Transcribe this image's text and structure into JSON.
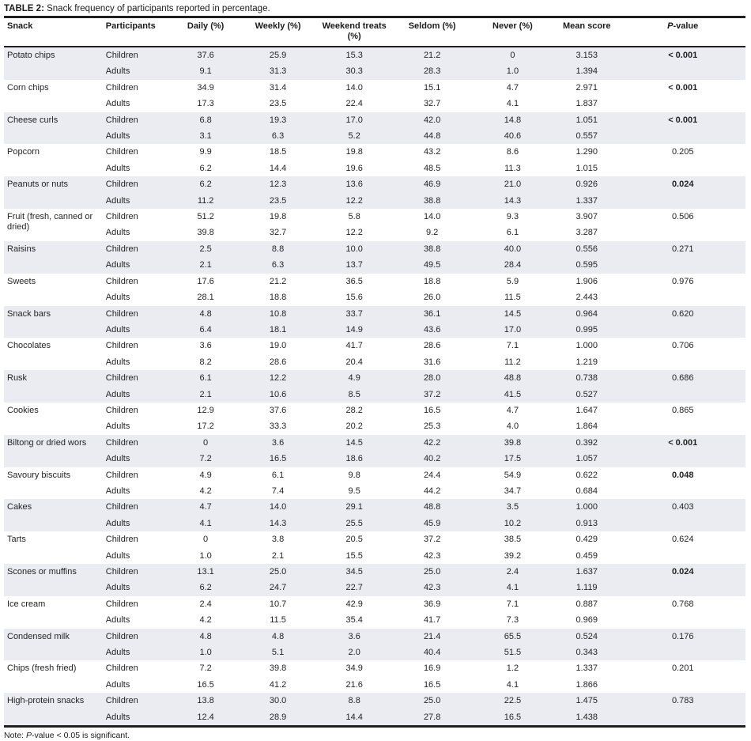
{
  "table": {
    "title_label": "TABLE 2:",
    "title_text": " Snack frequency of participants reported in percentage.",
    "headers": {
      "snack": "Snack",
      "participants": "Participants",
      "daily": "Daily (%)",
      "weekly": "Weekly (%)",
      "weekend": "Weekend treats (%)",
      "seldom": "Seldom (%)",
      "never": "Never (%)",
      "mean": "Mean score",
      "p_italic": "P",
      "p_rest": "-value"
    },
    "note": {
      "prefix": "Note: ",
      "p_italic": "P",
      "suffix": "-value < 0.05 is significant."
    },
    "colors": {
      "row_shade": "#ebecf1",
      "rule": "#231f20",
      "text": "#222222"
    },
    "groups": [
      {
        "snack": "Potato chips",
        "p_value": "< 0.001",
        "p_bold": true,
        "rows": [
          {
            "participant": "Children",
            "daily": "37.6",
            "weekly": "25.9",
            "weekend": "15.3",
            "seldom": "21.2",
            "never": "0",
            "mean": "3.153"
          },
          {
            "participant": "Adults",
            "daily": "9.1",
            "weekly": "31.3",
            "weekend": "30.3",
            "seldom": "28.3",
            "never": "1.0",
            "mean": "1.394"
          }
        ]
      },
      {
        "snack": "Corn chips",
        "p_value": "< 0.001",
        "p_bold": true,
        "rows": [
          {
            "participant": "Children",
            "daily": "34.9",
            "weekly": "31.4",
            "weekend": "14.0",
            "seldom": "15.1",
            "never": "4.7",
            "mean": "2.971"
          },
          {
            "participant": "Adults",
            "daily": "17.3",
            "weekly": "23.5",
            "weekend": "22.4",
            "seldom": "32.7",
            "never": "4.1",
            "mean": "1.837"
          }
        ]
      },
      {
        "snack": "Cheese curls",
        "p_value": "< 0.001",
        "p_bold": true,
        "rows": [
          {
            "participant": "Children",
            "daily": "6.8",
            "weekly": "19.3",
            "weekend": "17.0",
            "seldom": "42.0",
            "never": "14.8",
            "mean": "1.051"
          },
          {
            "participant": "Adults",
            "daily": "3.1",
            "weekly": "6.3",
            "weekend": "5.2",
            "seldom": "44.8",
            "never": "40.6",
            "mean": "0.557"
          }
        ]
      },
      {
        "snack": "Popcorn",
        "p_value": "0.205",
        "p_bold": false,
        "rows": [
          {
            "participant": "Children",
            "daily": "9.9",
            "weekly": "18.5",
            "weekend": "19.8",
            "seldom": "43.2",
            "never": "8.6",
            "mean": "1.290"
          },
          {
            "participant": "Adults",
            "daily": "6.2",
            "weekly": "14.4",
            "weekend": "19.6",
            "seldom": "48.5",
            "never": "11.3",
            "mean": "1.015"
          }
        ]
      },
      {
        "snack": "Peanuts or nuts",
        "p_value": "0.024",
        "p_bold": true,
        "rows": [
          {
            "participant": "Children",
            "daily": "6.2",
            "weekly": "12.3",
            "weekend": "13.6",
            "seldom": "46.9",
            "never": "21.0",
            "mean": "0.926"
          },
          {
            "participant": "Adults",
            "daily": "11.2",
            "weekly": "23.5",
            "weekend": "12.2",
            "seldom": "38.8",
            "never": "14.3",
            "mean": "1.337"
          }
        ]
      },
      {
        "snack": "Fruit (fresh, canned or dried)",
        "p_value": "0.506",
        "p_bold": false,
        "rows": [
          {
            "participant": "Children",
            "daily": "51.2",
            "weekly": "19.8",
            "weekend": "5.8",
            "seldom": "14.0",
            "never": "9.3",
            "mean": "3.907"
          },
          {
            "participant": "Adults",
            "daily": "39.8",
            "weekly": "32.7",
            "weekend": "12.2",
            "seldom": "9.2",
            "never": "6.1",
            "mean": "3.287"
          }
        ]
      },
      {
        "snack": "Raisins",
        "p_value": "0.271",
        "p_bold": false,
        "rows": [
          {
            "participant": "Children",
            "daily": "2.5",
            "weekly": "8.8",
            "weekend": "10.0",
            "seldom": "38.8",
            "never": "40.0",
            "mean": "0.556"
          },
          {
            "participant": "Adults",
            "daily": "2.1",
            "weekly": "6.3",
            "weekend": "13.7",
            "seldom": "49.5",
            "never": "28.4",
            "mean": "0.595"
          }
        ]
      },
      {
        "snack": "Sweets",
        "p_value": "0.976",
        "p_bold": false,
        "rows": [
          {
            "participant": "Children",
            "daily": "17.6",
            "weekly": "21.2",
            "weekend": "36.5",
            "seldom": "18.8",
            "never": "5.9",
            "mean": "1.906"
          },
          {
            "participant": "Adults",
            "daily": "28.1",
            "weekly": "18.8",
            "weekend": "15.6",
            "seldom": "26.0",
            "never": "11.5",
            "mean": "2.443"
          }
        ]
      },
      {
        "snack": "Snack bars",
        "p_value": "0.620",
        "p_bold": false,
        "rows": [
          {
            "participant": "Children",
            "daily": "4.8",
            "weekly": "10.8",
            "weekend": "33.7",
            "seldom": "36.1",
            "never": "14.5",
            "mean": "0.964"
          },
          {
            "participant": "Adults",
            "daily": "6.4",
            "weekly": "18.1",
            "weekend": "14.9",
            "seldom": "43.6",
            "never": "17.0",
            "mean": "0.995"
          }
        ]
      },
      {
        "snack": "Chocolates",
        "p_value": "0.706",
        "p_bold": false,
        "rows": [
          {
            "participant": "Children",
            "daily": "3.6",
            "weekly": "19.0",
            "weekend": "41.7",
            "seldom": "28.6",
            "never": "7.1",
            "mean": "1.000"
          },
          {
            "participant": "Adults",
            "daily": "8.2",
            "weekly": "28.6",
            "weekend": "20.4",
            "seldom": "31.6",
            "never": "11.2",
            "mean": "1.219"
          }
        ]
      },
      {
        "snack": "Rusk",
        "p_value": "0.686",
        "p_bold": false,
        "rows": [
          {
            "participant": "Children",
            "daily": "6.1",
            "weekly": "12.2",
            "weekend": "4.9",
            "seldom": "28.0",
            "never": "48.8",
            "mean": "0.738"
          },
          {
            "participant": "Adults",
            "daily": "2.1",
            "weekly": "10.6",
            "weekend": "8.5",
            "seldom": "37.2",
            "never": "41.5",
            "mean": "0.527"
          }
        ]
      },
      {
        "snack": "Cookies",
        "p_value": "0.865",
        "p_bold": false,
        "rows": [
          {
            "participant": "Children",
            "daily": "12.9",
            "weekly": "37.6",
            "weekend": "28.2",
            "seldom": "16.5",
            "never": "4.7",
            "mean": "1.647"
          },
          {
            "participant": "Adults",
            "daily": "17.2",
            "weekly": "33.3",
            "weekend": "20.2",
            "seldom": "25.3",
            "never": "4.0",
            "mean": "1.864"
          }
        ]
      },
      {
        "snack": "Biltong or dried wors",
        "p_value": "< 0.001",
        "p_bold": true,
        "rows": [
          {
            "participant": "Children",
            "daily": "0",
            "weekly": "3.6",
            "weekend": "14.5",
            "seldom": "42.2",
            "never": "39.8",
            "mean": "0.392"
          },
          {
            "participant": "Adults",
            "daily": "7.2",
            "weekly": "16.5",
            "weekend": "18.6",
            "seldom": "40.2",
            "never": "17.5",
            "mean": "1.057"
          }
        ]
      },
      {
        "snack": "Savoury biscuits",
        "p_value": "0.048",
        "p_bold": true,
        "rows": [
          {
            "participant": "Children",
            "daily": "4.9",
            "weekly": "6.1",
            "weekend": "9.8",
            "seldom": "24.4",
            "never": "54.9",
            "mean": "0.622"
          },
          {
            "participant": "Adults",
            "daily": "4.2",
            "weekly": "7.4",
            "weekend": "9.5",
            "seldom": "44.2",
            "never": "34.7",
            "mean": "0.684"
          }
        ]
      },
      {
        "snack": "Cakes",
        "p_value": "0.403",
        "p_bold": false,
        "rows": [
          {
            "participant": "Children",
            "daily": "4.7",
            "weekly": "14.0",
            "weekend": "29.1",
            "seldom": "48.8",
            "never": "3.5",
            "mean": "1.000"
          },
          {
            "participant": "Adults",
            "daily": "4.1",
            "weekly": "14.3",
            "weekend": "25.5",
            "seldom": "45.9",
            "never": "10.2",
            "mean": "0.913"
          }
        ]
      },
      {
        "snack": "Tarts",
        "p_value": "0.624",
        "p_bold": false,
        "rows": [
          {
            "participant": "Children",
            "daily": "0",
            "weekly": "3.8",
            "weekend": "20.5",
            "seldom": "37.2",
            "never": "38.5",
            "mean": "0.429"
          },
          {
            "participant": "Adults",
            "daily": "1.0",
            "weekly": "2.1",
            "weekend": "15.5",
            "seldom": "42.3",
            "never": "39.2",
            "mean": "0.459"
          }
        ]
      },
      {
        "snack": "Scones or muffins",
        "p_value": "0.024",
        "p_bold": true,
        "rows": [
          {
            "participant": "Children",
            "daily": "13.1",
            "weekly": "25.0",
            "weekend": "34.5",
            "seldom": "25.0",
            "never": "2.4",
            "mean": "1.637"
          },
          {
            "participant": "Adults",
            "daily": "6.2",
            "weekly": "24.7",
            "weekend": "22.7",
            "seldom": "42.3",
            "never": "4.1",
            "mean": "1.119"
          }
        ]
      },
      {
        "snack": "Ice cream",
        "p_value": "0.768",
        "p_bold": false,
        "rows": [
          {
            "participant": "Children",
            "daily": "2.4",
            "weekly": "10.7",
            "weekend": "42.9",
            "seldom": "36.9",
            "never": "7.1",
            "mean": "0.887"
          },
          {
            "participant": "Adults",
            "daily": "4.2",
            "weekly": "11.5",
            "weekend": "35.4",
            "seldom": "41.7",
            "never": "7.3",
            "mean": "0.969"
          }
        ]
      },
      {
        "snack": "Condensed milk",
        "p_value": "0.176",
        "p_bold": false,
        "rows": [
          {
            "participant": "Children",
            "daily": "4.8",
            "weekly": "4.8",
            "weekend": "3.6",
            "seldom": "21.4",
            "never": "65.5",
            "mean": "0.524"
          },
          {
            "participant": "Adults",
            "daily": "1.0",
            "weekly": "5.1",
            "weekend": "2.0",
            "seldom": "40.4",
            "never": "51.5",
            "mean": "0.343"
          }
        ]
      },
      {
        "snack": "Chips (fresh fried)",
        "p_value": "0.201",
        "p_bold": false,
        "rows": [
          {
            "participant": "Children",
            "daily": "7.2",
            "weekly": "39.8",
            "weekend": "34.9",
            "seldom": "16.9",
            "never": "1.2",
            "mean": "1.337"
          },
          {
            "participant": "Adults",
            "daily": "16.5",
            "weekly": "41.2",
            "weekend": "21.6",
            "seldom": "16.5",
            "never": "4.1",
            "mean": "1.866"
          }
        ]
      },
      {
        "snack": "High-protein snacks",
        "p_value": "0.783",
        "p_bold": false,
        "rows": [
          {
            "participant": "Children",
            "daily": "13.8",
            "weekly": "30.0",
            "weekend": "8.8",
            "seldom": "25.0",
            "never": "22.5",
            "mean": "1.475"
          },
          {
            "participant": "Adults",
            "daily": "12.4",
            "weekly": "28.9",
            "weekend": "14.4",
            "seldom": "27.8",
            "never": "16.5",
            "mean": "1.438"
          }
        ]
      }
    ]
  }
}
